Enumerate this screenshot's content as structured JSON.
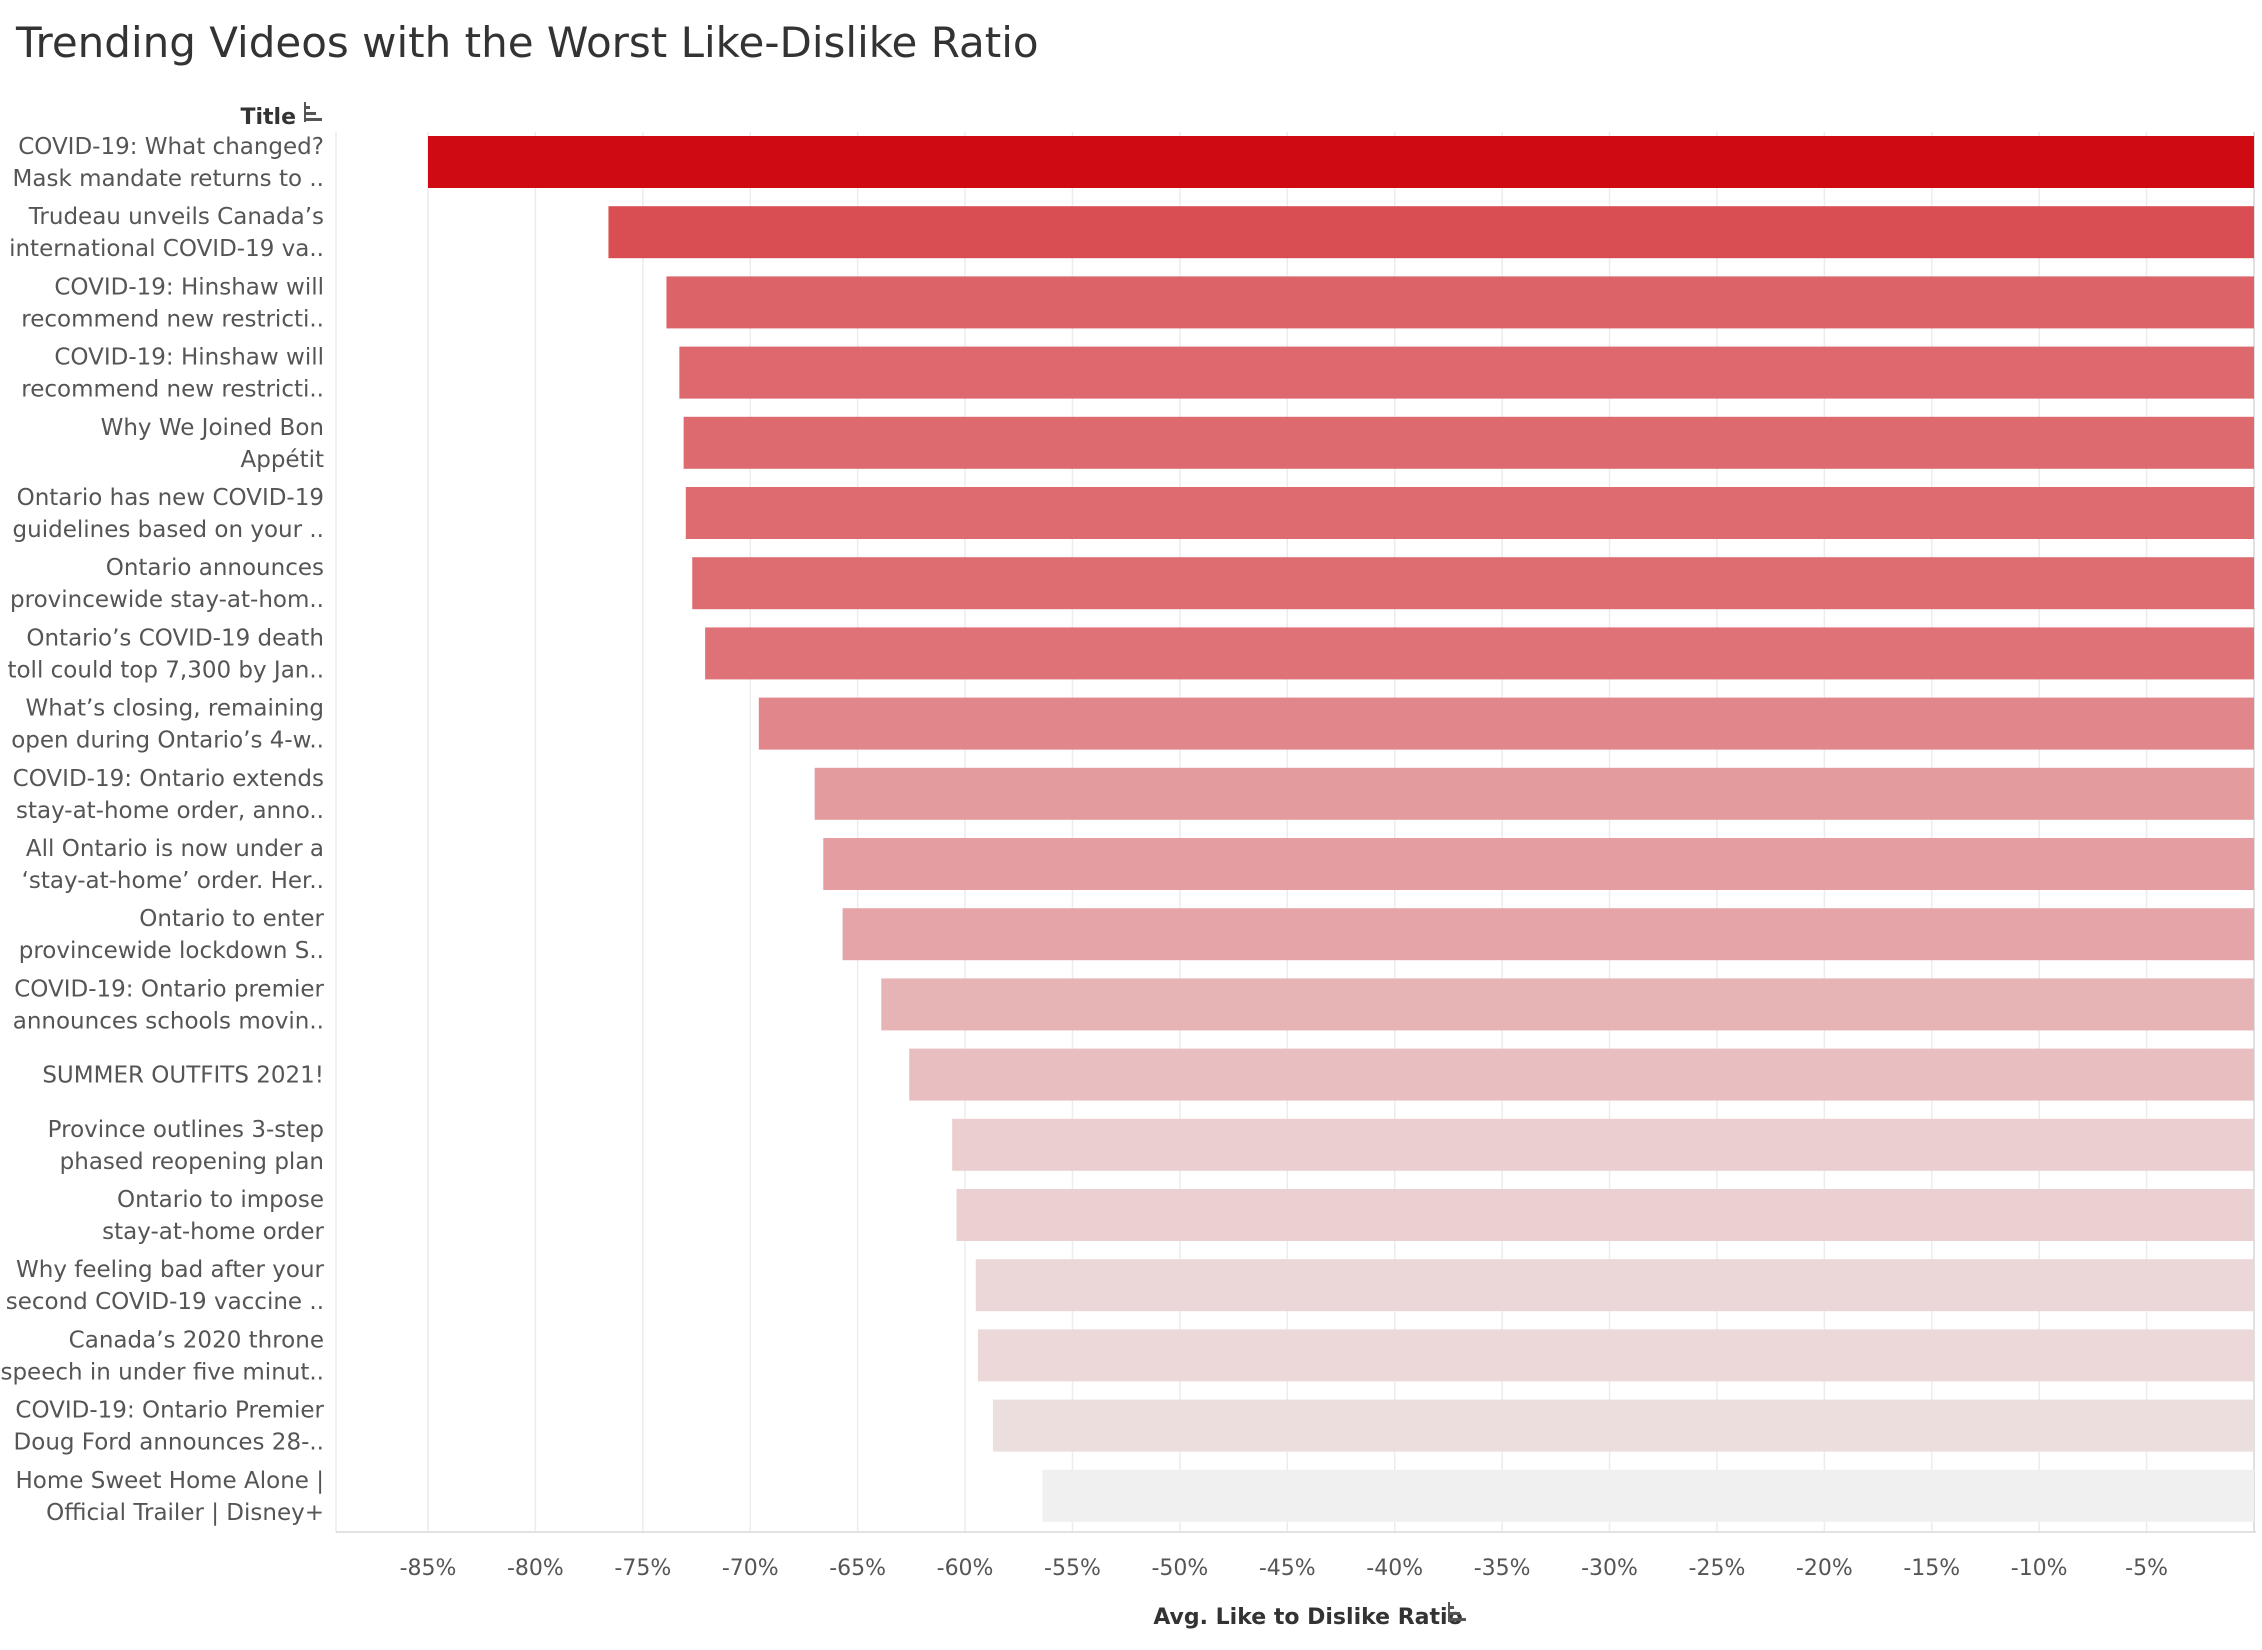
{
  "title": "Trending Videos with the Worst Like-Dislike Ratio",
  "chart_data": {
    "type": "bar",
    "orientation": "horizontal",
    "ycolumn_header": "Title",
    "xlabel": "Avg. Like to Dislike Ratio",
    "xlim": [
      -89.3,
      0
    ],
    "xticks": [
      -85,
      -80,
      -75,
      -70,
      -65,
      -60,
      -55,
      -50,
      -45,
      -40,
      -35,
      -30,
      -25,
      -20,
      -15,
      -10,
      -5
    ],
    "tick_format": "percent",
    "grid": "vertical",
    "sorted": "ascending",
    "color_scale": [
      "#f0f0f0",
      "#cf0a12"
    ],
    "categories": [
      [
        "COVID-19: What changed?",
        "Mask mandate returns to .."
      ],
      [
        "Trudeau unveils Canada’s",
        "international COVID-19 va.."
      ],
      [
        "COVID-19: Hinshaw will",
        "recommend new restricti.."
      ],
      [
        "COVID-19: Hinshaw will",
        "recommend new restricti.."
      ],
      [
        "Why We Joined Bon",
        "Appétit"
      ],
      [
        "Ontario has new COVID-19",
        "guidelines based on your .."
      ],
      [
        "Ontario announces",
        "provincewide stay-at-hom.."
      ],
      [
        "Ontario’s COVID-19 death",
        "toll could top 7,300 by Jan.."
      ],
      [
        "What’s closing, remaining",
        "open during Ontario’s 4-w.."
      ],
      [
        "COVID-19: Ontario extends",
        "stay-at-home order, anno.."
      ],
      [
        "All Ontario is now under a",
        "‘stay-at-home’ order. Her.."
      ],
      [
        "Ontario to enter",
        "provincewide lockdown S.."
      ],
      [
        "COVID-19: Ontario premier",
        "announces schools movin.."
      ],
      [
        "SUMMER OUTFITS 2021!"
      ],
      [
        "Province outlines 3-step",
        "phased reopening plan"
      ],
      [
        "Ontario to impose",
        "stay-at-home order"
      ],
      [
        "Why feeling bad after your",
        "second COVID-19 vaccine .."
      ],
      [
        "Canada’s 2020 throne",
        "speech in under five minut.."
      ],
      [
        "COVID-19: Ontario Premier",
        "Doug Ford announces 28-.."
      ],
      [
        "Home Sweet Home Alone |",
        "Official Trailer | Disney+"
      ]
    ],
    "values": [
      -85.0,
      -76.6,
      -73.9,
      -73.3,
      -73.1,
      -73.0,
      -72.7,
      -72.1,
      -69.6,
      -67.0,
      -66.6,
      -65.7,
      -63.9,
      -62.6,
      -60.6,
      -60.4,
      -59.5,
      -59.4,
      -58.7,
      -56.4
    ]
  }
}
